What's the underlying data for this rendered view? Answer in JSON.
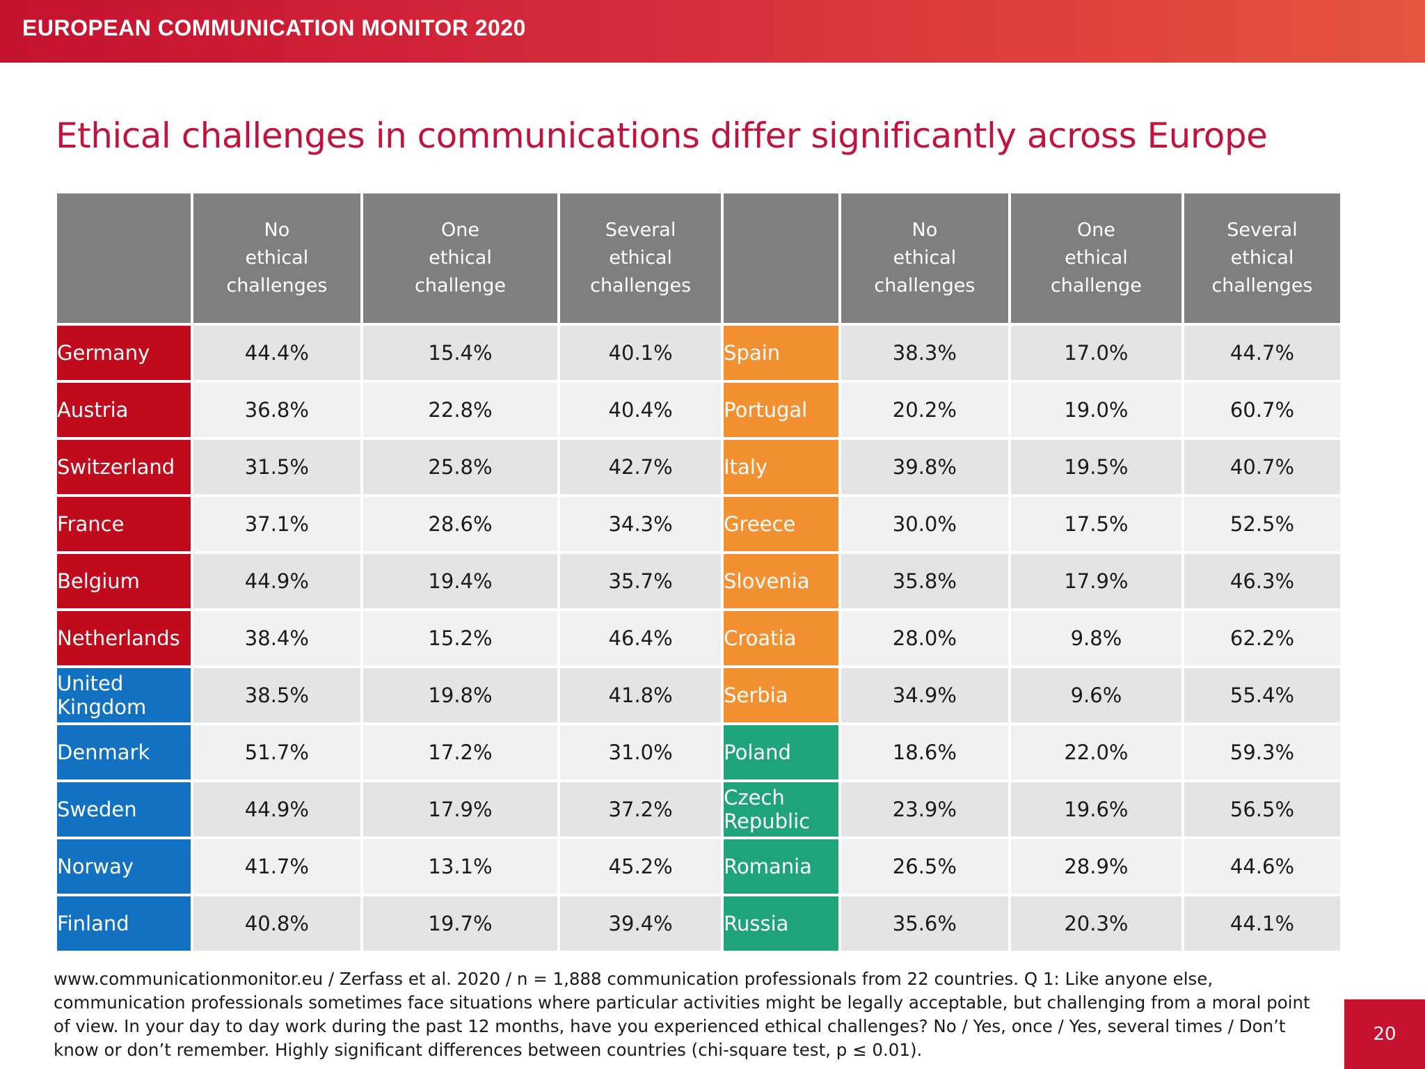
{
  "banner": {
    "title": "EUROPEAN COMMUNICATION MONITOR 2020"
  },
  "slide": {
    "title": "Ethical challenges in communications differ significantly across Europe"
  },
  "table": {
    "headers": {
      "no": [
        "No",
        "ethical",
        "challenges"
      ],
      "one": [
        "One",
        "ethical",
        "challenge"
      ],
      "several": [
        "Several",
        "ethical",
        "challenges"
      ]
    },
    "colors": {
      "red": "#c00b1d",
      "blue": "#1371c1",
      "orange": "#f39132",
      "green": "#1ea37a",
      "header": "#7f7f7f"
    },
    "rows": [
      {
        "left": {
          "country": "Germany",
          "color": "red",
          "no": "44.4%",
          "one": "15.4%",
          "several": "40.1%"
        },
        "right": {
          "country": "Spain",
          "color": "orange",
          "no": "38.3%",
          "one": "17.0%",
          "several": "44.7%"
        }
      },
      {
        "left": {
          "country": "Austria",
          "color": "red",
          "no": "36.8%",
          "one": "22.8%",
          "several": "40.4%"
        },
        "right": {
          "country": "Portugal",
          "color": "orange",
          "no": "20.2%",
          "one": "19.0%",
          "several": "60.7%"
        }
      },
      {
        "left": {
          "country": "Switzerland",
          "color": "red",
          "no": "31.5%",
          "one": "25.8%",
          "several": "42.7%"
        },
        "right": {
          "country": "Italy",
          "color": "orange",
          "no": "39.8%",
          "one": "19.5%",
          "several": "40.7%"
        }
      },
      {
        "left": {
          "country": "France",
          "color": "red",
          "no": "37.1%",
          "one": "28.6%",
          "several": "34.3%"
        },
        "right": {
          "country": "Greece",
          "color": "orange",
          "no": "30.0%",
          "one": "17.5%",
          "several": "52.5%"
        }
      },
      {
        "left": {
          "country": "Belgium",
          "color": "red",
          "no": "44.9%",
          "one": "19.4%",
          "several": "35.7%"
        },
        "right": {
          "country": "Slovenia",
          "color": "orange",
          "no": "35.8%",
          "one": "17.9%",
          "several": "46.3%"
        }
      },
      {
        "left": {
          "country": "Netherlands",
          "color": "red",
          "no": "38.4%",
          "one": "15.2%",
          "several": "46.4%"
        },
        "right": {
          "country": "Croatia",
          "color": "orange",
          "no": "28.0%",
          "one": "9.8%",
          "several": "62.2%"
        }
      },
      {
        "left": {
          "country": "United Kingdom",
          "color": "blue",
          "no": "38.5%",
          "one": "19.8%",
          "several": "41.8%"
        },
        "right": {
          "country": "Serbia",
          "color": "orange",
          "no": "34.9%",
          "one": "9.6%",
          "several": "55.4%"
        }
      },
      {
        "left": {
          "country": "Denmark",
          "color": "blue",
          "no": "51.7%",
          "one": "17.2%",
          "several": "31.0%"
        },
        "right": {
          "country": "Poland",
          "color": "green",
          "no": "18.6%",
          "one": "22.0%",
          "several": "59.3%"
        }
      },
      {
        "left": {
          "country": "Sweden",
          "color": "blue",
          "no": "44.9%",
          "one": "17.9%",
          "several": "37.2%"
        },
        "right": {
          "country": "Czech Republic",
          "color": "green",
          "no": "23.9%",
          "one": "19.6%",
          "several": "56.5%"
        }
      },
      {
        "left": {
          "country": "Norway",
          "color": "blue",
          "no": "41.7%",
          "one": "13.1%",
          "several": "45.2%"
        },
        "right": {
          "country": "Romania",
          "color": "green",
          "no": "26.5%",
          "one": "28.9%",
          "several": "44.6%"
        }
      },
      {
        "left": {
          "country": "Finland",
          "color": "blue",
          "no": "40.8%",
          "one": "19.7%",
          "several": "39.4%"
        },
        "right": {
          "country": "Russia",
          "color": "green",
          "no": "35.6%",
          "one": "20.3%",
          "several": "44.1%"
        }
      }
    ]
  },
  "footnote": {
    "text": "www.communicationmonitor.eu / Zerfass et al. 2020 / n = 1,888 communication professionals from 22 countries. Q 1: Like anyone else, communication professionals sometimes face situations where particular activities might be legally acceptable, but challenging from a moral point of view. In your day to day work during the past 12 months, have you experienced ethical challenges?  No / Yes, once / Yes, several times / Don’t know or don’t remember. Highly significant differences between countries (chi-square test, p ≤ 0.01)."
  },
  "page": {
    "number": "20"
  }
}
